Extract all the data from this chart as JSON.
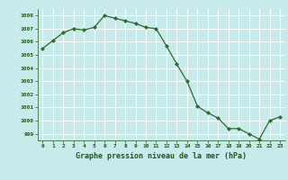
{
  "x": [
    0,
    1,
    2,
    3,
    4,
    5,
    6,
    7,
    8,
    9,
    10,
    11,
    12,
    13,
    14,
    15,
    16,
    17,
    18,
    19,
    20,
    21,
    22,
    23
  ],
  "y": [
    1005.5,
    1006.1,
    1006.7,
    1007.0,
    1006.9,
    1007.1,
    1008.0,
    1007.8,
    1007.6,
    1007.4,
    1007.1,
    1007.0,
    1005.7,
    1004.3,
    1003.0,
    1001.1,
    1000.6,
    1000.2,
    999.4,
    999.4,
    999.0,
    998.6,
    1000.0,
    1000.3
  ],
  "line_color": "#2d6a2d",
  "marker": "D",
  "marker_size": 2.2,
  "background_color": "#c8eaea",
  "grid_color": "#ffffff",
  "xlabel": "Graphe pression niveau de la mer (hPa)",
  "xlabel_color": "#1a5a1a",
  "tick_label_color": "#1a5a1a",
  "ylim": [
    998.5,
    1008.5
  ],
  "xlim": [
    -0.5,
    23.5
  ],
  "yticks": [
    999,
    1000,
    1001,
    1002,
    1003,
    1004,
    1005,
    1006,
    1007,
    1008
  ],
  "xticks": [
    0,
    1,
    2,
    3,
    4,
    5,
    6,
    7,
    8,
    9,
    10,
    11,
    12,
    13,
    14,
    15,
    16,
    17,
    18,
    19,
    20,
    21,
    22,
    23
  ],
  "xtick_labels": [
    "0",
    "1",
    "2",
    "3",
    "4",
    "5",
    "6",
    "7",
    "8",
    "9",
    "10",
    "11",
    "12",
    "13",
    "14",
    "15",
    "16",
    "17",
    "18",
    "19",
    "20",
    "21",
    "22",
    "23"
  ]
}
